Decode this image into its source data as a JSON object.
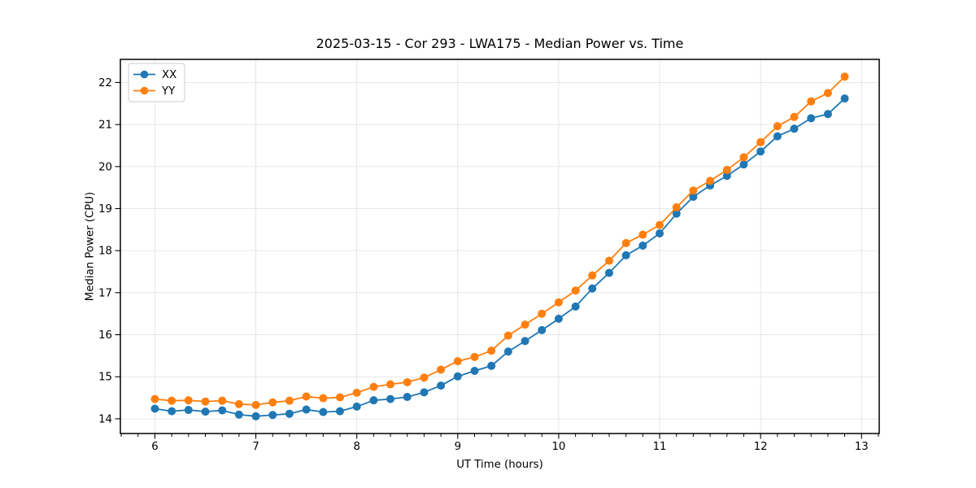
{
  "chart_data": {
    "type": "line",
    "title": "2025-03-15 - Cor 293 - LWA175 - Median Power vs. Time",
    "xlabel": "UT Time (hours)",
    "ylabel": "Median Power (CPU)",
    "xlim": [
      5.658,
      13.175
    ],
    "ylim": [
      13.65,
      22.55
    ],
    "xticks": [
      6,
      7,
      8,
      9,
      10,
      11,
      12,
      13
    ],
    "yticks": [
      14,
      15,
      16,
      17,
      18,
      19,
      20,
      21,
      22
    ],
    "x_minor_tick_step_hours": 0.1667,
    "grid": true,
    "legend_position": "upper left",
    "x": [
      6.0,
      6.167,
      6.333,
      6.5,
      6.667,
      6.833,
      7.0,
      7.167,
      7.333,
      7.5,
      7.667,
      7.833,
      8.0,
      8.167,
      8.333,
      8.5,
      8.667,
      8.833,
      9.0,
      9.167,
      9.333,
      9.5,
      9.667,
      9.833,
      10.0,
      10.167,
      10.333,
      10.5,
      10.667,
      10.833,
      11.0,
      11.167,
      11.333,
      11.5,
      11.667,
      11.833,
      12.0,
      12.167,
      12.333,
      12.5,
      12.667,
      12.833
    ],
    "series": [
      {
        "name": "XX",
        "color": "#1f77b4",
        "values": [
          14.24,
          14.18,
          14.21,
          14.17,
          14.2,
          14.1,
          14.06,
          14.09,
          14.12,
          14.22,
          14.16,
          14.18,
          14.29,
          14.44,
          14.47,
          14.52,
          14.63,
          14.79,
          15.01,
          15.14,
          15.26,
          15.6,
          15.85,
          16.11,
          16.38,
          16.67,
          17.1,
          17.47,
          17.89,
          18.12,
          18.41,
          18.88,
          19.28,
          19.55,
          19.78,
          20.05,
          20.36,
          20.72,
          20.9,
          21.15,
          21.25,
          21.62
        ]
      },
      {
        "name": "YY",
        "color": "#ff7f0e",
        "values": [
          14.47,
          14.43,
          14.44,
          14.41,
          14.43,
          14.35,
          14.33,
          14.39,
          14.43,
          14.53,
          14.49,
          14.51,
          14.62,
          14.76,
          14.82,
          14.87,
          14.98,
          15.17,
          15.37,
          15.47,
          15.62,
          15.98,
          16.24,
          16.5,
          16.77,
          17.05,
          17.41,
          17.76,
          18.18,
          18.38,
          18.61,
          19.03,
          19.43,
          19.66,
          19.92,
          20.22,
          20.58,
          20.96,
          21.18,
          21.55,
          21.75,
          22.14
        ]
      }
    ],
    "style": {
      "grid_color": "#e3e3e3",
      "spine_color": "#000000",
      "legend_border_color": "#cccccc",
      "legend_background": "rgba(255,255,255,0.9)"
    }
  }
}
